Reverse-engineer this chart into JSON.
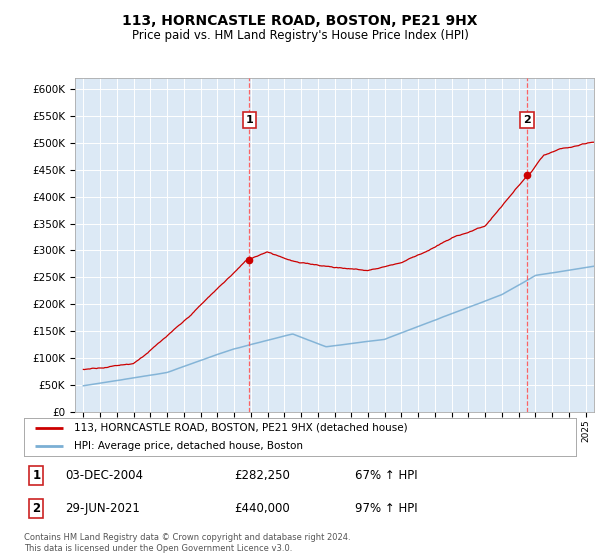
{
  "title": "113, HORNCASTLE ROAD, BOSTON, PE21 9HX",
  "subtitle": "Price paid vs. HM Land Registry's House Price Index (HPI)",
  "bg_color": "#dce9f5",
  "hpi_color": "#7bafd4",
  "price_color": "#cc0000",
  "vline_color": "#ff5555",
  "sale1_date_num": 2004.92,
  "sale1_price": 282250,
  "sale1_label": "03-DEC-2004",
  "sale1_price_str": "£282,250",
  "sale1_hpi_str": "67% ↑ HPI",
  "sale2_date_num": 2021.49,
  "sale2_price": 440000,
  "sale2_label": "29-JUN-2021",
  "sale2_price_str": "£440,000",
  "sale2_hpi_str": "97% ↑ HPI",
  "ylim_min": 0,
  "ylim_max": 620000,
  "ytick_step": 50000,
  "xmin": 1994.5,
  "xmax": 2025.5,
  "legend_line1": "113, HORNCASTLE ROAD, BOSTON, PE21 9HX (detached house)",
  "legend_line2": "HPI: Average price, detached house, Boston",
  "footer": "Contains HM Land Registry data © Crown copyright and database right 2024.\nThis data is licensed under the Open Government Licence v3.0."
}
